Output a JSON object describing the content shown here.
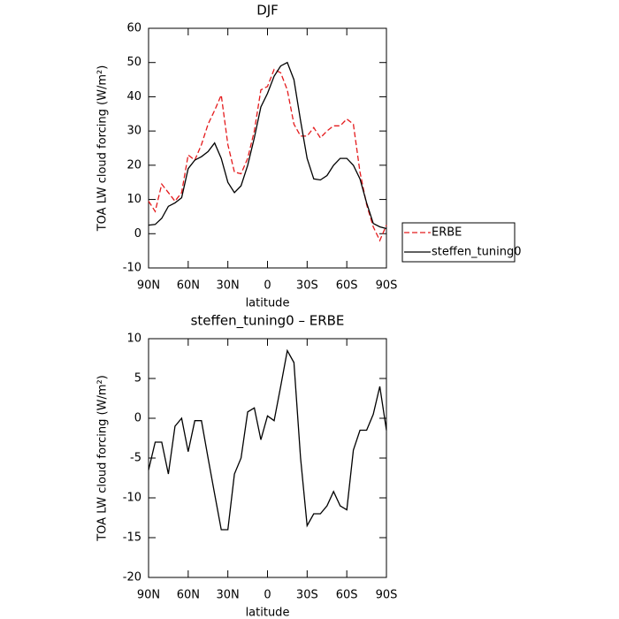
{
  "chart_data": [
    {
      "type": "line",
      "title": "DJF",
      "xlabel": "latitude",
      "ylabel": "TOA LW cloud forcing (W/m²)",
      "x": [
        90,
        85,
        80,
        75,
        70,
        65,
        60,
        55,
        50,
        45,
        40,
        35,
        30,
        25,
        20,
        15,
        10,
        5,
        0,
        -5,
        -10,
        -15,
        -20,
        -25,
        -30,
        -35,
        -40,
        -45,
        -50,
        -55,
        -60,
        -65,
        -70,
        -75,
        -80,
        -85,
        -90
      ],
      "xlim": [
        90,
        -90
      ],
      "xticks": [
        {
          "value": 90,
          "label": "90N"
        },
        {
          "value": 60,
          "label": "60N"
        },
        {
          "value": 30,
          "label": "30N"
        },
        0,
        {
          "value": -30,
          "label": "30S"
        },
        {
          "value": -60,
          "label": "60S"
        },
        {
          "value": -90,
          "label": "90S"
        }
      ],
      "ylim": [
        -10,
        60
      ],
      "yticks": [
        -10,
        0,
        10,
        20,
        30,
        40,
        50,
        60
      ],
      "legend": "right",
      "series": [
        {
          "name": "ERBE",
          "color": "#e41a1c",
          "dash": true,
          "values": [
            9.5,
            6.5,
            14.5,
            12,
            9.5,
            12,
            23,
            21.5,
            26,
            32,
            36,
            40.5,
            26,
            18,
            17.5,
            22,
            30,
            42,
            43,
            48,
            47,
            42,
            32,
            28.5,
            28.5,
            31,
            28,
            30,
            31.5,
            31.5,
            33.5,
            32,
            18,
            8.5,
            2,
            -2,
            2.5
          ]
        },
        {
          "name": "steffen_tuning0",
          "color": "#000000",
          "dash": false,
          "values": [
            2.5,
            2.7,
            4.5,
            8,
            9,
            10.5,
            19,
            21.5,
            22.5,
            24,
            26.5,
            22,
            15,
            12,
            14,
            20,
            28,
            37,
            41,
            46,
            49,
            50,
            45,
            33,
            22,
            16,
            15.7,
            17,
            20,
            22,
            22,
            20,
            16,
            9,
            3,
            2,
            1.5
          ]
        }
      ]
    },
    {
      "type": "line",
      "title": "steffen_tuning0 – ERBE",
      "xlabel": "latitude",
      "ylabel": "TOA LW cloud forcing (W/m²)",
      "x": [
        90,
        85,
        80,
        75,
        70,
        65,
        60,
        55,
        50,
        45,
        40,
        35,
        30,
        25,
        20,
        15,
        10,
        5,
        0,
        -5,
        -10,
        -15,
        -20,
        -25,
        -30,
        -35,
        -40,
        -45,
        -50,
        -55,
        -60,
        -65,
        -70,
        -75,
        -80,
        -85,
        -90
      ],
      "xlim": [
        90,
        -90
      ],
      "xticks": [
        {
          "value": 90,
          "label": "90N"
        },
        {
          "value": 60,
          "label": "60N"
        },
        {
          "value": 30,
          "label": "30N"
        },
        0,
        {
          "value": -30,
          "label": "30S"
        },
        {
          "value": -60,
          "label": "60S"
        },
        {
          "value": -90,
          "label": "90S"
        }
      ],
      "ylim": [
        -20,
        10
      ],
      "yticks": [
        -20,
        -15,
        -10,
        -5,
        0,
        5,
        10
      ],
      "color": "#000000",
      "values": [
        -6.5,
        -3,
        -3,
        -7,
        -1,
        0,
        -4.2,
        -0.3,
        -0.3,
        -5,
        -9.5,
        -14,
        -14,
        -7,
        -5,
        0.8,
        1.3,
        -2.7,
        0.3,
        -0.3,
        4,
        8.5,
        7,
        -5,
        -13.5,
        -12,
        -12,
        -11,
        -9.2,
        -11,
        -11.5,
        -4,
        -1.5,
        -1.5,
        0.5,
        4,
        -1.5
      ]
    }
  ]
}
